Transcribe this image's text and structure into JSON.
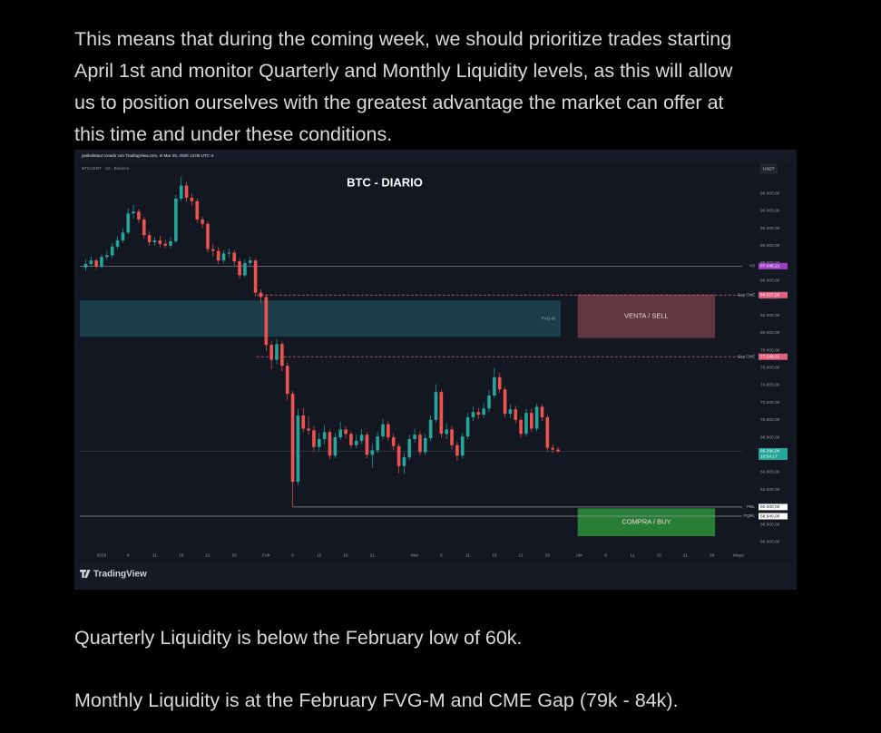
{
  "intro_lines": [
    "This means that during the coming week, we should prioritize trades starting",
    "April 1st and monitor Quarterly and Monthly Liquidity levels, as this will allow",
    "us to position ourselves with the greatest advantage the market can offer at",
    "this time and under these conditions."
  ],
  "paragraphs": [
    "Quarterly Liquidity is below the February low of 60k.",
    "Monthly Liquidity is at the February FVG-M and CME Gap (79k - 84k)."
  ],
  "chart_data": {
    "type": "candlestick",
    "title": "BTC - DIARIO",
    "credit": "yaskelstaut creado con TradingView.com, el Mar 29, 2026 13:05 UTC-4",
    "symbol": "BTCUSDT · 1D · Binance",
    "currency": "USDT",
    "brand": "TradingView",
    "up_color": "#26a69a",
    "down_color": "#ef5350",
    "grid": false,
    "xlim": [
      -4.1,
      120.7
    ],
    "ylim": [
      55200,
      99450
    ],
    "xticks": [
      {
        "value": 0,
        "label": "2026"
      },
      {
        "value": 5,
        "label": "6"
      },
      {
        "value": 10,
        "label": "11"
      },
      {
        "value": 15,
        "label": "16"
      },
      {
        "value": 20,
        "label": "21"
      },
      {
        "value": 25,
        "label": "26"
      },
      {
        "value": 31,
        "label": "Feb"
      },
      {
        "value": 36,
        "label": "6"
      },
      {
        "value": 41,
        "label": "11"
      },
      {
        "value": 46,
        "label": "16"
      },
      {
        "value": 51,
        "label": "21"
      },
      {
        "value": 59,
        "label": "Mar"
      },
      {
        "value": 64,
        "label": "6"
      },
      {
        "value": 69,
        "label": "11"
      },
      {
        "value": 74,
        "label": "16"
      },
      {
        "value": 79,
        "label": "21"
      },
      {
        "value": 84,
        "label": "26"
      },
      {
        "value": 90,
        "label": "Abr"
      },
      {
        "value": 95,
        "label": "6"
      },
      {
        "value": 100,
        "label": "11"
      },
      {
        "value": 105,
        "label": "16"
      },
      {
        "value": 110,
        "label": "21"
      },
      {
        "value": 115,
        "label": "26"
      },
      {
        "value": 120,
        "label": "Mayo"
      }
    ],
    "yticks": [
      {
        "value": 56000,
        "label": "56.000,00"
      },
      {
        "value": 58000,
        "label": "58.000,00"
      },
      {
        "value": 60000,
        "label": "60.000,00"
      },
      {
        "value": 62000,
        "label": "62.000,00"
      },
      {
        "value": 64000,
        "label": "64.000,00"
      },
      {
        "value": 66000,
        "label": "66.000,00"
      },
      {
        "value": 68000,
        "label": "68.000,00"
      },
      {
        "value": 70000,
        "label": "70.000,00"
      },
      {
        "value": 72000,
        "label": "72.000,00"
      },
      {
        "value": 74000,
        "label": "74.000,00"
      },
      {
        "value": 76000,
        "label": "76.000,00"
      },
      {
        "value": 78000,
        "label": "78.000,00"
      },
      {
        "value": 80000,
        "label": "80.000,00"
      },
      {
        "value": 82000,
        "label": "82.000,00"
      },
      {
        "value": 84000,
        "label": "84.000,00"
      },
      {
        "value": 86000,
        "label": "86.000,00"
      },
      {
        "value": 88000,
        "label": "88.000,00"
      },
      {
        "value": 90000,
        "label": "90.000,00"
      },
      {
        "value": 92000,
        "label": "92.000,00"
      },
      {
        "value": 94000,
        "label": "94.000,00"
      },
      {
        "value": 96000,
        "label": "96.000,00"
      }
    ],
    "x": [
      -3,
      -2,
      -1,
      0,
      1,
      2,
      3,
      4,
      5,
      6,
      7,
      8,
      9,
      10,
      11,
      12,
      13,
      14,
      15,
      16,
      17,
      18,
      19,
      20,
      21,
      22,
      23,
      24,
      25,
      26,
      27,
      28,
      29,
      30,
      31,
      32,
      33,
      34,
      35,
      36,
      37,
      38,
      39,
      40,
      41,
      42,
      43,
      44,
      45,
      46,
      47,
      48,
      49,
      50,
      51,
      52,
      53,
      54,
      55,
      56,
      57,
      58,
      59,
      60,
      61,
      62,
      63,
      64,
      65,
      66,
      67,
      68,
      69,
      70,
      71,
      72,
      73,
      74,
      75,
      76,
      77,
      78,
      79,
      80,
      81,
      82,
      83,
      84,
      85,
      86
    ],
    "open": [
      87500,
      87900,
      88300,
      87600,
      88700,
      88900,
      89900,
      90600,
      91500,
      93700,
      93900,
      93000,
      91200,
      90400,
      90600,
      90200,
      90000,
      90500,
      95400,
      96900,
      95500,
      95100,
      93000,
      92500,
      89600,
      89400,
      88300,
      89100,
      89200,
      88200,
      86600,
      88000,
      88300,
      84600,
      84100,
      78600,
      76900,
      78700,
      76200,
      73000,
      62900,
      70500,
      69000,
      68800,
      66900,
      67800,
      68600,
      65900,
      68000,
      68900,
      68400,
      67100,
      67600,
      68300,
      66000,
      66500,
      68100,
      69500,
      68000,
      67000,
      64700,
      65700,
      67800,
      68300,
      66300,
      67900,
      70000,
      73200,
      68400,
      68900,
      67100,
      65900,
      68100,
      70300,
      70900,
      70600,
      71300,
      72800,
      74900,
      73500,
      70700,
      71200,
      70000,
      68400,
      70800,
      69000,
      71500,
      70300,
      66800,
      66600
    ],
    "high": [
      88400,
      88800,
      88500,
      89000,
      89400,
      90300,
      91100,
      92000,
      94300,
      94700,
      94200,
      93300,
      91600,
      91000,
      91100,
      90700,
      91000,
      95800,
      97900,
      97300,
      96000,
      95400,
      93300,
      92800,
      90200,
      89800,
      89500,
      89700,
      89500,
      88500,
      88400,
      88700,
      88500,
      85000,
      84400,
      79100,
      79300,
      79000,
      76600,
      73300,
      71300,
      71400,
      70400,
      69300,
      68500,
      69400,
      68900,
      68500,
      69800,
      69300,
      68700,
      68300,
      68900,
      68600,
      67300,
      68600,
      70100,
      69900,
      68400,
      67300,
      66200,
      68300,
      69000,
      68700,
      68400,
      70500,
      74100,
      73500,
      69600,
      69300,
      67500,
      68500,
      70800,
      71600,
      71400,
      71900,
      73400,
      76000,
      75400,
      73800,
      71800,
      71600,
      70300,
      71300,
      71300,
      71900,
      71800,
      70600,
      67200,
      66900
    ],
    "low": [
      87100,
      87600,
      87300,
      87400,
      88400,
      88600,
      89600,
      90300,
      91300,
      93100,
      92600,
      90800,
      90000,
      90000,
      89800,
      89700,
      89700,
      90300,
      95100,
      95000,
      94600,
      92600,
      92000,
      89200,
      88700,
      87900,
      88000,
      88600,
      87700,
      86200,
      86400,
      87600,
      84200,
      83400,
      77900,
      75800,
      76400,
      75600,
      72300,
      60000,
      62500,
      68600,
      68300,
      66300,
      66400,
      67200,
      65500,
      65600,
      67700,
      67900,
      66700,
      66800,
      67200,
      65600,
      64500,
      66200,
      67800,
      67600,
      66500,
      63900,
      63800,
      65400,
      67400,
      65900,
      66000,
      67600,
      69700,
      67900,
      67800,
      66600,
      65300,
      65600,
      67800,
      69900,
      70100,
      70200,
      70900,
      72500,
      73100,
      70300,
      70200,
      69600,
      67900,
      68100,
      68600,
      68700,
      69900,
      66400,
      66200,
      66200
    ],
    "close": [
      87900,
      88300,
      87600,
      88700,
      88900,
      89900,
      90600,
      91500,
      93700,
      93900,
      93000,
      91200,
      90400,
      90600,
      90200,
      90000,
      90500,
      95400,
      96900,
      95500,
      95100,
      93000,
      92500,
      89600,
      89400,
      88300,
      89100,
      89200,
      88200,
      86600,
      88000,
      88300,
      84600,
      84100,
      78600,
      76900,
      78700,
      76200,
      73000,
      62900,
      70500,
      69000,
      68800,
      66900,
      67800,
      68600,
      65900,
      68000,
      68900,
      68400,
      67100,
      67600,
      68300,
      66000,
      66500,
      68100,
      69500,
      68000,
      67000,
      64700,
      65700,
      67800,
      68300,
      66300,
      67900,
      70000,
      73200,
      68400,
      68900,
      67100,
      65900,
      68100,
      70300,
      70900,
      70600,
      71300,
      72800,
      74900,
      73500,
      70700,
      71200,
      70000,
      68400,
      70800,
      69000,
      71500,
      70300,
      66800,
      66600,
      66400
    ],
    "zones": [
      {
        "label": "FVG-M",
        "x": [
          -4.1,
          86.5
        ],
        "top": 83700,
        "bottom": 79550,
        "color": "#1c4450"
      },
      {
        "label": "VENTA / SELL",
        "x": [
          89.7,
          115.6
        ],
        "top": 84400,
        "bottom": 79400,
        "color": "#6a3a45"
      },
      {
        "label": "COMPRA / BUY",
        "x": [
          89.7,
          115.6
        ],
        "top": 59850,
        "bottom": 56650,
        "color": "#2c8a37"
      }
    ],
    "levels": [
      {
        "label": "YO",
        "value": 87648.21,
        "value_label": "87.648,21",
        "from": -4.1,
        "color": "#787b86",
        "tag": "#9c3fc4",
        "dashed": false
      },
      {
        "label": "Gap CME",
        "value": 84327.06,
        "value_label": "84.327,06",
        "from": 29.2,
        "color": "#e0607e",
        "tag": "#e0607e",
        "dashed": true
      },
      {
        "label": "Gap CME",
        "value": 77249.31,
        "value_label": "77.249,31",
        "from": 29.2,
        "color": "#e0607e",
        "tag": "#e0607e",
        "dashed": true
      },
      {
        "label": "PML",
        "value": 60000,
        "value_label": "60.000,00",
        "from": 36,
        "color": "#9598a1",
        "tag": "#ffffff",
        "dashed": false
      },
      {
        "label": "PQML",
        "value": 58946,
        "value_label": "58.946,00",
        "from": -4.1,
        "color": "#9598a1",
        "tag": "#ffffff",
        "dashed": false
      }
    ],
    "last_price": {
      "value": 66396,
      "value_label": "66.396,00",
      "countdown": "10:54:17",
      "color": "#26a69a"
    }
  }
}
